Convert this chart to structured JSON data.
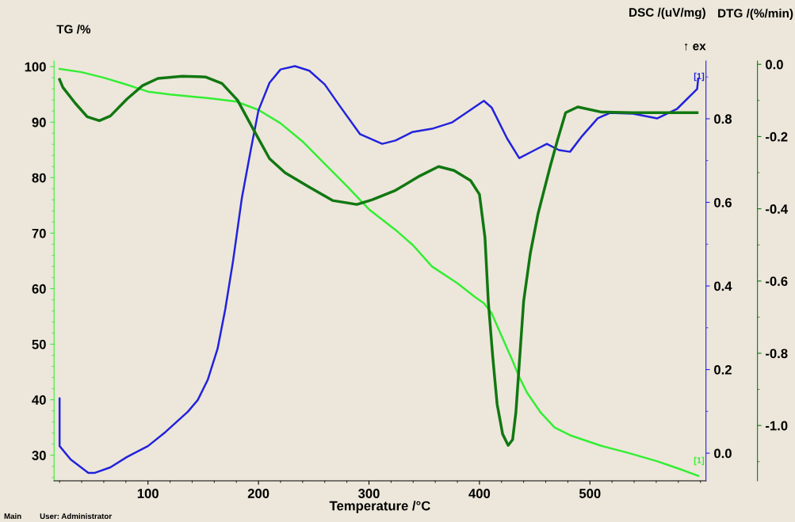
{
  "chart_data": {
    "type": "line",
    "xlabel": "Temperature /°C",
    "ylabel": "TG /%",
    "y2label": "DSC /(uV/mg)",
    "y3label": "DTG /(%/min)",
    "xlim": [
      15,
      605
    ],
    "xticks": [
      100,
      200,
      300,
      400,
      500
    ],
    "ylim": [
      25.4,
      101
    ],
    "yticks": [
      30,
      40,
      50,
      60,
      70,
      80,
      90,
      100
    ],
    "y2lim": [
      -0.066,
      0.938
    ],
    "y2ticks": [
      {
        "value": 0,
        "label": "0.0"
      },
      0.2,
      0.4,
      0.6,
      0.8
    ],
    "y3lim": [
      -1.153,
      0.009
    ],
    "y3ticks": [
      {
        "value": 0,
        "label": "0.0"
      },
      -0.2,
      -0.4,
      -0.6,
      -0.8,
      {
        "value": -1,
        "label": "-1.0"
      }
    ],
    "grid": false,
    "legend": false,
    "marker": "none",
    "line_style": "solid",
    "series": [
      {
        "color": "#33ee33",
        "x": [
          20,
          40,
          60,
          80,
          100,
          120,
          140,
          160,
          180,
          200,
          220,
          240,
          260,
          280,
          300,
          324,
          340,
          357,
          380,
          396,
          404,
          411,
          420,
          430,
          436,
          443,
          455,
          468,
          482,
          510,
          535,
          561,
          580,
          598
        ],
        "values": [
          99.6,
          99.0,
          98.0,
          96.8,
          95.5,
          95.0,
          94.6,
          94.2,
          93.7,
          92.2,
          89.8,
          86.5,
          82.5,
          78.5,
          74.3,
          70.6,
          67.8,
          64.0,
          61.0,
          58.5,
          57.4,
          55.6,
          51.5,
          47.0,
          44.1,
          41.3,
          37.8,
          35.0,
          33.6,
          31.7,
          30.4,
          28.9,
          27.6,
          26.3
        ]
      },
      {
        "color": "#2222dd",
        "axis": "y2",
        "x": [
          20,
          20,
          30,
          46,
          52,
          66,
          81,
          100,
          116,
          136,
          145,
          154,
          163,
          170,
          177,
          185,
          193,
          200,
          210,
          220,
          233,
          246,
          260,
          274,
          292,
          312,
          324,
          339,
          357,
          375,
          389,
          404,
          411,
          425,
          436,
          450,
          461,
          472,
          482,
          493,
          507,
          518,
          539,
          561,
          579,
          597,
          598
        ],
        "values": [
          0.131,
          0.017,
          -0.015,
          -0.047,
          -0.047,
          -0.034,
          -0.009,
          0.017,
          0.051,
          0.099,
          0.127,
          0.175,
          0.25,
          0.345,
          0.46,
          0.611,
          0.725,
          0.82,
          0.886,
          0.918,
          0.926,
          0.915,
          0.882,
          0.829,
          0.763,
          0.74,
          0.748,
          0.768,
          0.776,
          0.791,
          0.816,
          0.843,
          0.827,
          0.753,
          0.706,
          0.725,
          0.74,
          0.725,
          0.721,
          0.759,
          0.801,
          0.814,
          0.812,
          0.801,
          0.824,
          0.871,
          0.896
        ]
      },
      {
        "color": "#117711",
        "axis": "y3",
        "x": [
          20,
          23,
          34,
          45,
          56,
          66,
          81,
          95,
          109,
          131,
          152,
          167,
          181,
          195,
          210,
          224,
          246,
          267,
          289,
          303,
          324,
          346,
          363,
          377,
          392,
          400,
          405,
          408,
          412,
          416,
          421,
          426,
          430,
          433,
          437,
          440,
          446,
          453,
          464,
          471,
          478,
          489,
          510,
          539,
          567,
          597
        ],
        "values": [
          -0.042,
          -0.064,
          -0.107,
          -0.145,
          -0.156,
          -0.143,
          -0.096,
          -0.059,
          -0.039,
          -0.033,
          -0.035,
          -0.053,
          -0.099,
          -0.178,
          -0.261,
          -0.3,
          -0.34,
          -0.377,
          -0.388,
          -0.375,
          -0.349,
          -0.309,
          -0.283,
          -0.294,
          -0.322,
          -0.36,
          -0.48,
          -0.656,
          -0.809,
          -0.941,
          -1.024,
          -1.055,
          -1.039,
          -0.963,
          -0.787,
          -0.656,
          -0.524,
          -0.414,
          -0.283,
          -0.206,
          -0.134,
          -0.118,
          -0.132,
          -0.134,
          -0.134,
          -0.134
        ]
      }
    ],
    "annotations": [
      "↑ ex",
      "Main",
      "User: Administrator",
      "[1]",
      "[1]"
    ]
  }
}
